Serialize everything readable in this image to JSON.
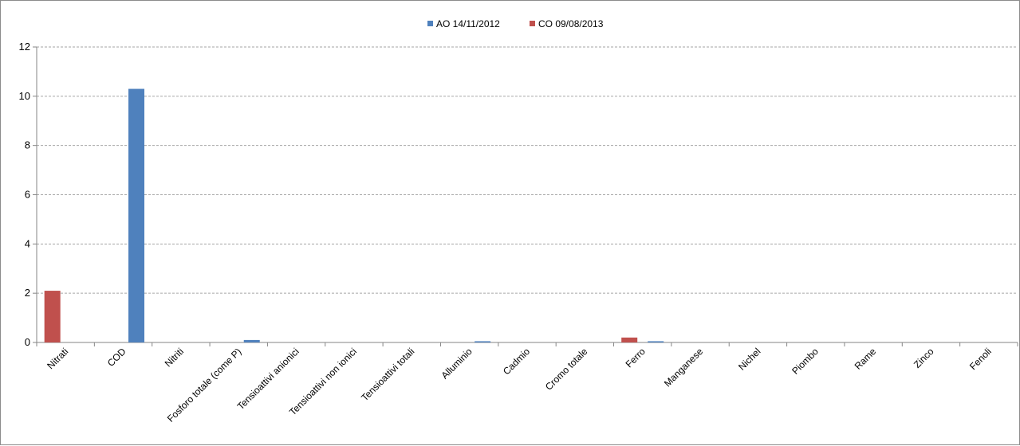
{
  "chart_data": {
    "type": "bar",
    "title": "",
    "xlabel": "",
    "ylabel": "",
    "ylim": [
      0,
      12
    ],
    "y_ticks": [
      "0",
      "2",
      "4",
      "6",
      "8",
      "10",
      "12"
    ],
    "grid": "horizontal-dashed",
    "legend_position": "top",
    "categories": [
      "Nitrati",
      "COD",
      "Nitriti",
      "Fosforo totale (come P)",
      "Tensioattivi anionici",
      "Tensioattivi non ionici",
      "Tensioattivi totali",
      "Alluminio",
      "Cadmio",
      "Cromo totale",
      "Ferro",
      "Manganese",
      "Nichel",
      "Piombo",
      "Rame",
      "Zinco",
      "Fenoli"
    ],
    "series": [
      {
        "name": "AO  14/11/2012",
        "color": "#4f81bd",
        "values": [
          0,
          10.3,
          0,
          0.1,
          0,
          0,
          0,
          0.05,
          0,
          0,
          0.05,
          0,
          0,
          0,
          0,
          0,
          0
        ]
      },
      {
        "name": "CO 09/08/2013",
        "color": "#c0504d",
        "values": [
          2.1,
          0,
          0,
          0,
          0,
          0,
          0,
          0,
          0,
          0,
          0.2,
          0,
          0,
          0,
          0,
          0,
          0
        ]
      }
    ]
  }
}
